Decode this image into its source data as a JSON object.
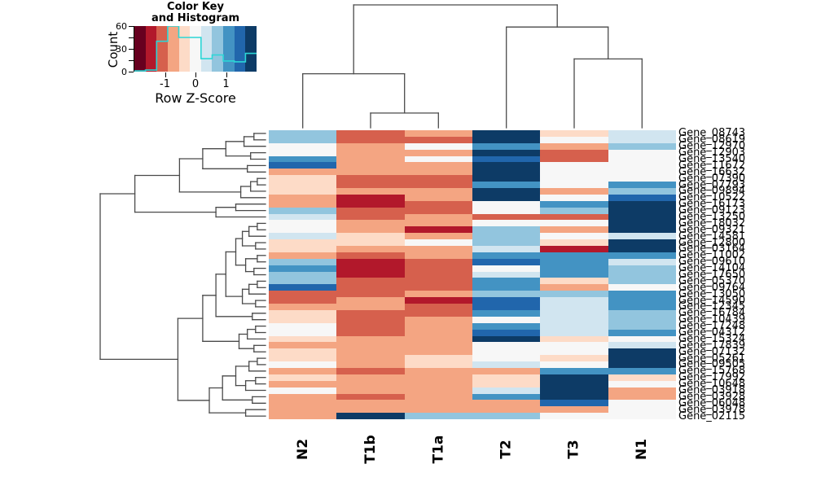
{
  "color_key": {
    "title_line1": "Color Key",
    "title_line2": "and Histogram",
    "count_axis_label": "Count",
    "count_ticks": [
      {
        "v": 0,
        "label": "0"
      },
      {
        "v": 15,
        "label": ""
      },
      {
        "v": 30,
        "label": "30"
      },
      {
        "v": 45,
        "label": ""
      },
      {
        "v": 60,
        "label": "60"
      }
    ],
    "count_max": 60,
    "z_axis_label": "Row Z-Score",
    "z_ticks": [
      {
        "v": -1,
        "label": "-1"
      },
      {
        "v": 0,
        "label": "0"
      },
      {
        "v": 1,
        "label": "1"
      }
    ],
    "histogram_counts": [
      1,
      2,
      40,
      60,
      45,
      45,
      17,
      22,
      14,
      13,
      24
    ],
    "histogram_color": "#2bd6d6"
  },
  "chart_data": {
    "type": "heatmap",
    "title": "",
    "xlabel": "",
    "ylabel": "",
    "zlim": [
      -2,
      2
    ],
    "palette": [
      "#67001f",
      "#b2182b",
      "#d6604d",
      "#f4a582",
      "#fddbc7",
      "#f7f7f7",
      "#d1e5f0",
      "#92c5de",
      "#4393c3",
      "#2166ac",
      "#0d3b66"
    ],
    "dendrogram_color": "#4a4a4a",
    "columns": [
      "N2",
      "T1b",
      "T1a",
      "T2",
      "T3",
      "N1"
    ],
    "rows": [
      "Gene_08743",
      "Gene_08619",
      "Gene_12970",
      "Gene_12903",
      "Gene_13540",
      "Gene_11672",
      "Gene_16632",
      "Gene_07390",
      "Gene_07793",
      "Gene_09894",
      "Gene_10522",
      "Gene_16173",
      "Gene_09123",
      "Gene_13250",
      "Gene_18032",
      "Gene_09321",
      "Gene_14581",
      "Gene_12800",
      "Gene_03164",
      "Gene_11002",
      "Gene_09610",
      "Gene_14104",
      "Gene_17650",
      "Gene_05370",
      "Gene_09764",
      "Gene_13050",
      "Gene_14590",
      "Gene_12345",
      "Gene_16784",
      "Gene_10439",
      "Gene_17248",
      "Gene_04312",
      "Gene_15324",
      "Gene_17839",
      "Gene_07132",
      "Gene_05261",
      "Gene_09505",
      "Gene_15768",
      "Gene_17992",
      "Gene_10648",
      "Gene_03918",
      "Gene_03928",
      "Gene_06048",
      "Gene_03978",
      "Gene_02115"
    ],
    "values": [
      [
        0.8,
        -1.2,
        -0.8,
        2,
        -0.4,
        0.4
      ],
      [
        0.8,
        -1.2,
        -1.2,
        2,
        0,
        0.4
      ],
      [
        0,
        -0.8,
        0,
        1.2,
        -0.8,
        0.8
      ],
      [
        0,
        -0.8,
        -0.8,
        2,
        -1.2,
        0
      ],
      [
        1.2,
        -0.8,
        0,
        1.6,
        -1.2,
        0
      ],
      [
        1.6,
        -0.8,
        -0.8,
        2,
        0,
        0
      ],
      [
        -0.8,
        -0.8,
        -0.8,
        2,
        0,
        0
      ],
      [
        -0.4,
        -1.2,
        -1.2,
        2,
        0,
        0
      ],
      [
        -0.4,
        -1.2,
        -1.2,
        1.2,
        0,
        1.2
      ],
      [
        -0.4,
        -0.8,
        -0.8,
        2,
        -0.8,
        0.8
      ],
      [
        -0.8,
        -1.6,
        -0.8,
        2,
        0,
        1.6
      ],
      [
        -0.8,
        -1.6,
        -1.2,
        0,
        1.2,
        2
      ],
      [
        0.8,
        -1.2,
        -1.2,
        0,
        0.8,
        2
      ],
      [
        0.4,
        -1.2,
        -0.8,
        -1.2,
        -1.2,
        2
      ],
      [
        0,
        -0.8,
        -0.8,
        0,
        0,
        2
      ],
      [
        0,
        -0.8,
        -1.6,
        0.8,
        -0.8,
        2
      ],
      [
        0.4,
        -0.4,
        -0.8,
        0.8,
        0,
        0.4
      ],
      [
        -0.4,
        -0.4,
        0,
        0.8,
        -0.4,
        2
      ],
      [
        -0.4,
        -0.8,
        -0.8,
        0.4,
        -1.6,
        2
      ],
      [
        -0.8,
        -1.2,
        -0.8,
        1.2,
        1.2,
        1.2
      ],
      [
        0.8,
        -1.6,
        -1.2,
        1.6,
        1.2,
        0.4
      ],
      [
        1.2,
        -1.6,
        -1.2,
        0,
        1.2,
        0.8
      ],
      [
        0.8,
        -1.6,
        -1.2,
        0.4,
        1.2,
        0.8
      ],
      [
        0.8,
        -1.2,
        -1.2,
        1.2,
        -0.4,
        0.8
      ],
      [
        1.6,
        -1.2,
        -1.2,
        1.2,
        -0.8,
        0
      ],
      [
        -1.2,
        -1.2,
        -0.8,
        0.8,
        0.8,
        1.2
      ],
      [
        -1.2,
        -0.8,
        -1.6,
        1.6,
        0.4,
        1.2
      ],
      [
        -0.8,
        -0.8,
        -1.2,
        1.6,
        0.4,
        1.2
      ],
      [
        -0.4,
        -1.2,
        -1.2,
        1.2,
        0.4,
        0.8
      ],
      [
        -0.4,
        -1.2,
        -0.8,
        0,
        0.4,
        0.8
      ],
      [
        0,
        -1.2,
        -0.8,
        1.2,
        0.4,
        0.8
      ],
      [
        0,
        -1.2,
        -0.8,
        1.6,
        0.4,
        1.2
      ],
      [
        -0.4,
        -0.8,
        -0.8,
        2,
        -0.4,
        0
      ],
      [
        -0.8,
        -0.8,
        -0.8,
        0,
        0,
        0.4
      ],
      [
        -0.4,
        -0.8,
        -0.8,
        0,
        0,
        2
      ],
      [
        -0.4,
        -0.8,
        -0.4,
        0,
        -0.4,
        2
      ],
      [
        0,
        -0.8,
        -0.4,
        0.4,
        0,
        2
      ],
      [
        -0.8,
        -1.2,
        -0.8,
        -0.8,
        1.2,
        1.2
      ],
      [
        -0.4,
        -0.8,
        -0.8,
        -0.4,
        2,
        -0.4
      ],
      [
        -0.8,
        -0.8,
        -0.8,
        -0.4,
        2,
        0
      ],
      [
        0,
        -0.8,
        -0.8,
        0.4,
        2,
        -0.8
      ],
      [
        -0.8,
        -1.2,
        -0.8,
        1.2,
        2,
        -0.8
      ],
      [
        -0.8,
        -0.8,
        -0.8,
        -0.8,
        1.6,
        0
      ],
      [
        -0.8,
        -0.8,
        -0.8,
        -0.8,
        -0.8,
        0
      ],
      [
        -0.8,
        2,
        0.8,
        0.8,
        0,
        0
      ]
    ],
    "column_dendrogram": [
      [
        0,
        [
          1,
          2,
          0.12
        ],
        0.44
      ],
      [
        3,
        [
          4,
          5,
          0.56
        ],
        0.82
      ],
      1.0
    ],
    "row_dendrogram": [
      [
        [
          [
            [
              [
                [
                  0,
                  1,
                  0.07
                ],
                2,
                0.13
              ],
              [
                3,
                4,
                0.09
              ],
              0.24
            ],
            [
              5,
              6,
              0.11
            ],
            0.38
          ],
          [
            [
              [
                7,
                8,
                0.05
              ],
              9,
              0.09
            ],
            10,
            0.15
          ],
          0.52
        ],
        [
          [
            11,
            12,
            0.18
          ],
          13,
          0.3
        ],
        0.79
      ],
      [
        [
          [
            [
              [
                [
                  [
                    14,
                    15,
                    0.05
                  ],
                  16,
                  0.1
                ],
                [
                  17,
                  18,
                  0.06
                ],
                0.14
              ],
              [
                [
                  19,
                  20,
                  0.05
                ],
                [
                  21,
                  22,
                  0.07
                ],
                0.12
              ],
              0.18
            ],
            [
              [
                [
                  23,
                  24,
                  0.05
                ],
                25,
                0.1
              ],
              [
                26,
                27,
                0.06
              ],
              0.14
            ],
            0.24
          ],
          [
            28,
            29,
            0.08
          ],
          0.3
        ],
        [
          [
            [
              30,
              31,
              0.06
            ],
            32,
            0.11
          ],
          [
            33,
            34,
            0.07
          ],
          0.16
        ],
        0.38
      ],
      1.0
    ],
    "row_dendrogram_lower": [
      [
        [
          [
            [
              35,
              36,
              0.05
            ],
            37,
            0.1
          ],
          [
            [
              38,
              39,
              0.06
            ],
            40,
            0.12
          ],
          0.18
        ],
        [
          41,
          42,
          0.08
        ],
        0.26
      ],
      [
        43,
        44,
        0.12
      ],
      0.34
    ]
  }
}
